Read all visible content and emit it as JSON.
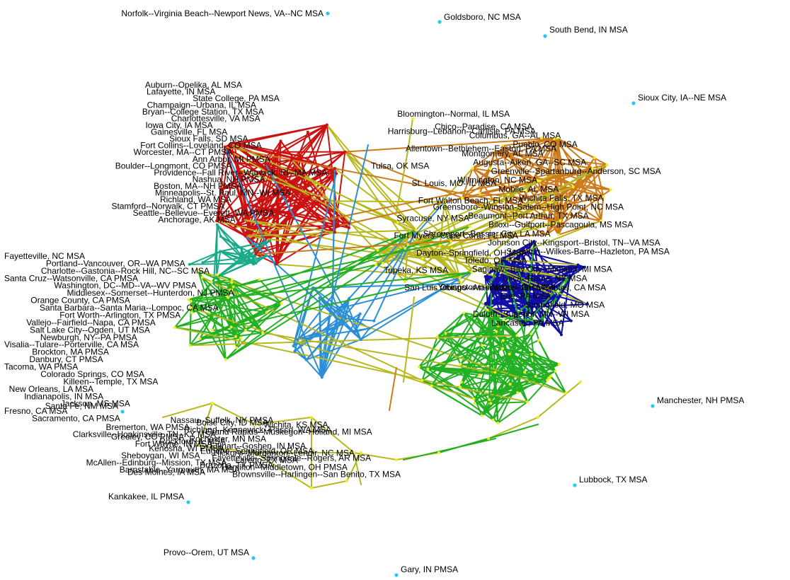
{
  "colors": {
    "red": "#cc1111",
    "orange": "#cc7a1a",
    "olive": "#b8b81e",
    "green": "#22b022",
    "blue": "#1010a8",
    "skyblue": "#2a8fd6",
    "teal": "#1aaa8a",
    "isolate": "#22ccee",
    "node_yellow": "#eeee22"
  },
  "isolates": [
    "Norfolk--Virginia Beach--Newport News, VA--NC MSA",
    "Goldsboro, NC MSA",
    "South Bend, IN MSA",
    "Sioux City, IA--NE MSA",
    "Santa Fe, NM MSA",
    "Kankakee, IL PMSA",
    "Lubbock, TX MSA",
    "Provo--Orem, UT MSA",
    "Gary, IN PMSA",
    "Manchester, NH PMSA"
  ],
  "labels": {
    "red": [
      "Auburn--Opelika, AL MSA",
      "Lafayette, IN MSA",
      "State College, PA MSA",
      "Champaign--Urbana, IL MSA",
      "Bryan--College Station, TX MSA",
      "Charlottesville, VA MSA",
      "Iowa City, IA MSA",
      "Gainesville, FL MSA",
      "Sioux Falls, SD MSA",
      "Fort Collins--Loveland, CO MSA",
      "Worcester, MA--CT PMSA",
      "Ann Arbor, MI PMSA",
      "Boulder--Longmont, CO PMSA",
      "Providence--Fall River--Warwick, RI--MA MSA",
      "Nashua, NH PMSA",
      "Boston, MA--NH PMSA",
      "Minneapolis--St. Paul, MN--WI MSA",
      "Richland, WA MSA",
      "Stamford--Norwalk, CT PMSA",
      "Seattle--Bellevue--Everett, WA PMSA",
      "Anchorage, AK MSA"
    ],
    "left": [
      "Fayetteville, NC MSA",
      "Portland--Vancouver, OR--WA PMSA",
      "Charlotte--Gastonia--Rock Hill, NC--SC MSA",
      "Santa Cruz--Watsonville, CA PMSA",
      "Washington, DC--MD--VA--WV PMSA",
      "Middlesex--Somerset--Hunterdon, NJ PMSA",
      "Orange County, CA PMSA",
      "Santa Barbara--Santa Maria--Lompoc, CA MSA",
      "Fort Worth--Arlington, TX PMSA",
      "Vallejo--Fairfield--Napa, CA PMSA",
      "Salt Lake City--Ogden, UT MSA",
      "Newburgh, NY--PA PMSA",
      "Visalia--Tulare--Porterville, CA MSA",
      "Brockton, MA PMSA",
      "Danbury, CT PMSA",
      "Tacoma, WA PMSA",
      "Colorado Springs, CO MSA",
      "Killeen--Temple, TX MSA",
      "New Orleans, LA MSA",
      "Indianapolis, IN MSA",
      "Jackson, MS MSA",
      "Fresno, CA MSA",
      "Sacramento, CA PMSA"
    ],
    "bottom": [
      "Nassau--Suffolk, NY PMSA",
      "Boise City, ID MSA",
      "Wichita, KS MSA",
      "Bremerton, WA PMSA",
      "Richland--Kennewick--Pasco, WA MSA",
      "Grand Rapids--Muskegon--Holland, MI MSA",
      "Clarksville--Hopkinsville, TN--KY MSA",
      "Greeley, CO PMSA",
      "Rochester, MN MSA",
      "Rockford, IL MSA",
      "Fort Wayne, IN MSA",
      "Elkhart--Goshen, IN MSA",
      "Kenosha, WI PMSA",
      "Eugene--Springfield, OR MSA",
      "Hickory--Morganton--Lenoir, NC MSA",
      "Sheboygan, WI MSA",
      "Fayetteville--Springdale--Rogers, AR MSA",
      "Laredo, TX MSA",
      "McAllen--Edinburg--Mission, TX MSA",
      "Brazoria, TX PMSA",
      "Hamilton--Middletown, OH PMSA",
      "Barnstable--Yarmouth, MA MSA",
      "Des Moines, IA MSA",
      "Brownsville--Harlingen--San Benito, TX MSA"
    ],
    "center": [
      "Bloomington--Normal, IL MSA",
      "Harrisburg--Lebanon--Carlisle, PA MSA",
      "Allentown--Bethlehem--Easton, PA MSA",
      "Tulsa, OK MSA",
      "St. Louis, MO--IL MSA",
      "Fort Walton Beach, FL MSA",
      "Syracuse, NY MSA",
      "Fort Myers--Cape Coral, FL MSA",
      "Dayton--Springfield, OH MSA",
      "Topeka, KS MSA",
      "San Luis Obispo--Atascadero--Paso Robles, CA MSA"
    ],
    "right": [
      "Chico--Paradise, CA MSA",
      "Columbus, GA--AL MSA",
      "Pueblo, CO MSA",
      "Montgomery, AL MSA",
      "Augusta--Aiken, GA--SC MSA",
      "Greenville--Spartanburg--Anderson, SC MSA",
      "Wilmington, NC MSA",
      "Mobile, AL MSA",
      "Wichita Falls, TX MSA",
      "Greensboro--Winston-Salem--High Point, NC MSA",
      "Beaumont--Port Arthur, TX MSA",
      "Biloxi--Gulfport--Pascagoula, MS MSA",
      "Shreveport--Bossier City, LA MSA",
      "Johnson City--Kingsport--Bristol, TN--VA MSA",
      "Scranton--Wilkes-Barre--Hazleton, PA MSA",
      "Toledo, OH MSA",
      "Saginaw--Bay City--Midland, MI MSA",
      "Utica--Rome, NY MSA",
      "Youngstown--Warren, OH MSA",
      "Erie, PA MSA",
      "Springfield, MO MSA",
      "Duluth--Superior, MN--WI MSA",
      "Lancaster, PA MSA"
    ]
  }
}
